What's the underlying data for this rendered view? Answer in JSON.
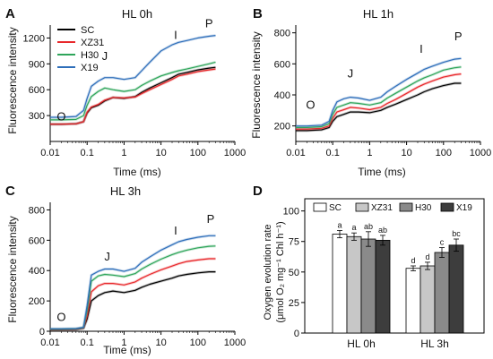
{
  "panels": [
    {
      "letter": "A",
      "title": "HL 0h",
      "kind": "ojip",
      "xlabel": "Time (ms)",
      "ylabel": "Fluorescence intensity",
      "xticks": [
        "0.01",
        "0.1",
        "1",
        "10",
        "100",
        "1000"
      ],
      "yticks": [
        "300",
        "600",
        "900",
        "1200"
      ],
      "phase_labels": [
        "O",
        "J",
        "I",
        "P"
      ],
      "legend": [
        "SC",
        "XZ31",
        "H30",
        "X19"
      ]
    },
    {
      "letter": "B",
      "title": "HL 1h",
      "kind": "ojip",
      "xlabel": "Time (ms)",
      "ylabel": "Fluorescence intensity",
      "xticks": [
        "0.01",
        "0.1",
        "1",
        "10",
        "100",
        "1000"
      ],
      "yticks": [
        "200",
        "400",
        "600",
        "800"
      ],
      "phase_labels": [
        "O",
        "J",
        "I",
        "P"
      ]
    },
    {
      "letter": "C",
      "title": "HL 3h",
      "kind": "ojip",
      "xlabel": "Time (ms)",
      "ylabel": "Fluorescence intensity",
      "xticks": [
        "0.01",
        "0.1",
        "1",
        "10",
        "100",
        "1000"
      ],
      "yticks": [
        "0",
        "200",
        "400",
        "600",
        "800"
      ],
      "phase_labels": [
        "O",
        "J",
        "I",
        "P"
      ]
    },
    {
      "letter": "D",
      "kind": "bar",
      "ylabel_line1": "Oxygen evolution rate",
      "ylabel_line2": "(μmol O₂ mg⁻¹ Chl h⁻¹)",
      "yticks": [
        "0",
        "25",
        "50",
        "75",
        "100"
      ],
      "groups": [
        "HL 0h",
        "HL 3h"
      ],
      "legend": [
        "SC",
        "XZ31",
        "H30",
        "X19"
      ]
    }
  ],
  "colors": {
    "SC": "#000000",
    "XZ31": "#e8282b",
    "H30": "#2ea55a",
    "X19": "#2f6fba",
    "bar_SC": "#ffffff",
    "bar_XZ31": "#c7c7c7",
    "bar_H30": "#8a8a8a",
    "bar_X19": "#3d3d3d"
  },
  "chart_data": [
    {
      "type": "line",
      "title": "HL 0h",
      "xlabel": "Time (ms)",
      "ylabel": "Fluorescence intensity",
      "x_scale": "log",
      "xlim": [
        0.01,
        1000
      ],
      "ylim": [
        0,
        1350
      ],
      "x": [
        0.01,
        0.02,
        0.05,
        0.08,
        0.1,
        0.13,
        0.2,
        0.3,
        0.5,
        1,
        2,
        3,
        5,
        10,
        20,
        30,
        50,
        100,
        200,
        300
      ],
      "series": [
        {
          "name": "SC",
          "values": [
            200,
            200,
            205,
            230,
            330,
            390,
            420,
            470,
            510,
            500,
            520,
            570,
            620,
            680,
            740,
            780,
            800,
            830,
            850,
            860
          ]
        },
        {
          "name": "XZ31",
          "values": [
            200,
            200,
            205,
            230,
            340,
            400,
            430,
            480,
            510,
            505,
            515,
            555,
            600,
            660,
            720,
            760,
            780,
            810,
            830,
            840
          ]
        },
        {
          "name": "H30",
          "values": [
            250,
            250,
            255,
            300,
            420,
            520,
            580,
            620,
            600,
            580,
            600,
            650,
            700,
            760,
            800,
            820,
            840,
            870,
            900,
            920
          ]
        },
        {
          "name": "X19",
          "values": [
            280,
            280,
            290,
            360,
            500,
            640,
            700,
            740,
            740,
            720,
            740,
            820,
            920,
            1050,
            1120,
            1150,
            1170,
            1200,
            1220,
            1230
          ]
        }
      ]
    },
    {
      "type": "line",
      "title": "HL 1h",
      "xlabel": "Time (ms)",
      "ylabel": "Fluorescence intensity",
      "x_scale": "log",
      "xlim": [
        0.01,
        1000
      ],
      "ylim": [
        100,
        850
      ],
      "x": [
        0.01,
        0.02,
        0.05,
        0.08,
        0.1,
        0.13,
        0.2,
        0.3,
        0.5,
        1,
        2,
        3,
        5,
        10,
        20,
        30,
        50,
        100,
        200,
        300
      ],
      "series": [
        {
          "name": "SC",
          "values": [
            170,
            170,
            175,
            190,
            230,
            260,
            275,
            290,
            290,
            285,
            300,
            320,
            340,
            370,
            400,
            420,
            440,
            460,
            475,
            475
          ]
        },
        {
          "name": "XZ31",
          "values": [
            180,
            180,
            185,
            200,
            250,
            290,
            305,
            320,
            315,
            305,
            320,
            345,
            370,
            410,
            450,
            470,
            490,
            515,
            530,
            535
          ]
        },
        {
          "name": "H30",
          "values": [
            190,
            190,
            195,
            215,
            275,
            320,
            335,
            350,
            345,
            335,
            350,
            380,
            410,
            450,
            490,
            510,
            530,
            560,
            575,
            580
          ]
        },
        {
          "name": "X19",
          "values": [
            200,
            200,
            205,
            230,
            300,
            355,
            375,
            385,
            380,
            365,
            385,
            420,
            455,
            500,
            540,
            565,
            585,
            610,
            630,
            635
          ]
        }
      ]
    },
    {
      "type": "line",
      "title": "HL 3h",
      "xlabel": "Time (ms)",
      "ylabel": "Fluorescence intensity",
      "x_scale": "log",
      "xlim": [
        0.01,
        1000
      ],
      "ylim": [
        0,
        850
      ],
      "x": [
        0.01,
        0.02,
        0.05,
        0.08,
        0.1,
        0.13,
        0.2,
        0.3,
        0.5,
        1,
        2,
        3,
        5,
        10,
        20,
        30,
        50,
        100,
        200,
        300
      ],
      "series": [
        {
          "name": "SC",
          "values": [
            10,
            10,
            12,
            20,
            80,
            200,
            235,
            255,
            265,
            255,
            270,
            290,
            310,
            330,
            350,
            365,
            375,
            385,
            392,
            392
          ]
        },
        {
          "name": "XZ31",
          "values": [
            12,
            12,
            14,
            22,
            100,
            260,
            300,
            315,
            315,
            305,
            325,
            350,
            375,
            405,
            430,
            445,
            460,
            470,
            478,
            478
          ]
        },
        {
          "name": "H30",
          "values": [
            14,
            14,
            16,
            24,
            140,
            330,
            365,
            375,
            370,
            360,
            380,
            410,
            440,
            475,
            505,
            520,
            535,
            550,
            560,
            562
          ]
        },
        {
          "name": "X19",
          "values": [
            16,
            16,
            18,
            26,
            170,
            370,
            395,
            410,
            410,
            395,
            415,
            455,
            490,
            535,
            570,
            590,
            605,
            620,
            630,
            630
          ]
        }
      ]
    },
    {
      "type": "bar",
      "ylabel": "Oxygen evolution rate (μmol O₂ mg⁻¹ Chl h⁻¹)",
      "ylim": [
        0,
        110
      ],
      "categories": [
        "HL 0h",
        "HL 3h"
      ],
      "series": [
        {
          "name": "SC",
          "values": [
            81,
            53
          ],
          "errors": [
            3,
            2
          ],
          "letters": [
            "a",
            "d"
          ]
        },
        {
          "name": "XZ31",
          "values": [
            79,
            55
          ],
          "errors": [
            3,
            3
          ],
          "letters": [
            "a",
            "d"
          ]
        },
        {
          "name": "H30",
          "values": [
            77,
            66
          ],
          "errors": [
            6,
            4
          ],
          "letters": [
            "ab",
            "c"
          ]
        },
        {
          "name": "X19",
          "values": [
            76,
            72
          ],
          "errors": [
            4,
            5
          ],
          "letters": [
            "ab",
            "bc"
          ]
        }
      ]
    }
  ]
}
